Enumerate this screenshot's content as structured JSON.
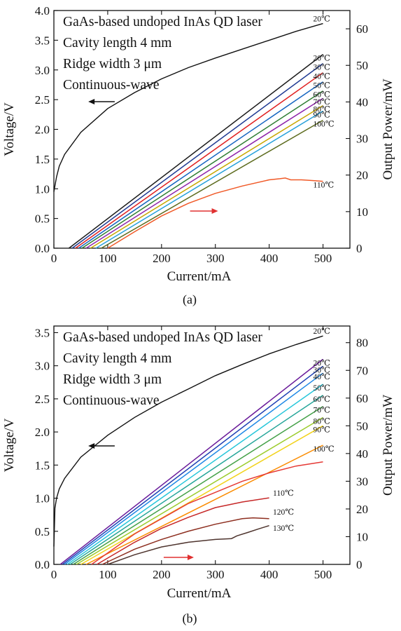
{
  "chart_data": [
    {
      "type": "line",
      "panel_label": "(a)",
      "xlabel": "Current/mA",
      "ylabel": "Voltage/V",
      "y2label": "Output Power/mW",
      "xlim": [
        0,
        550
      ],
      "ylim": [
        0,
        4.0
      ],
      "y2lim": [
        0,
        65
      ],
      "xticks": [
        0,
        100,
        200,
        300,
        400,
        500
      ],
      "yticks": [
        0,
        0.5,
        1.0,
        1.5,
        2.0,
        2.5,
        3.0,
        3.5,
        4.0
      ],
      "y2ticks": [
        0,
        10,
        20,
        30,
        40,
        50,
        60
      ],
      "annotations": [
        "GaAs-based undoped InAs QD laser",
        "Cavity length 4 mm",
        "Ridge width 3 μm",
        "Continuous-wave"
      ],
      "voltage": {
        "label": "20℃",
        "color": "#111111",
        "arrow": "left",
        "x": [
          0,
          2,
          5,
          10,
          20,
          50,
          100,
          150,
          200,
          250,
          300,
          350,
          400,
          450,
          500
        ],
        "y": [
          0.95,
          1.05,
          1.2,
          1.38,
          1.58,
          1.95,
          2.35,
          2.62,
          2.85,
          3.04,
          3.2,
          3.35,
          3.5,
          3.65,
          3.78
        ]
      },
      "power_arrow": "right",
      "power_series": [
        {
          "name": "20℃",
          "color": "#1a1a1a",
          "x": [
            28,
            500
          ],
          "y": [
            0,
            53
          ]
        },
        {
          "name": "30℃",
          "color": "#1f3a93",
          "x": [
            34,
            500
          ],
          "y": [
            0,
            50.5
          ]
        },
        {
          "name": "40℃",
          "color": "#e02020",
          "x": [
            40,
            500
          ],
          "y": [
            0,
            48
          ]
        },
        {
          "name": "50℃",
          "color": "#1565c0",
          "x": [
            46,
            500
          ],
          "y": [
            0,
            45.5
          ]
        },
        {
          "name": "60℃",
          "color": "#2e7d32",
          "x": [
            52,
            500
          ],
          "y": [
            0,
            43
          ]
        },
        {
          "name": "70℃",
          "color": "#8e24aa",
          "x": [
            60,
            500
          ],
          "y": [
            0,
            41
          ]
        },
        {
          "name": "80℃",
          "color": "#c6a700",
          "x": [
            68,
            500
          ],
          "y": [
            0,
            39
          ]
        },
        {
          "name": "90℃",
          "color": "#26a0da",
          "x": [
            78,
            500
          ],
          "y": [
            0,
            37.5
          ]
        },
        {
          "name": "100℃",
          "color": "#5d6b1e",
          "x": [
            88,
            500
          ],
          "y": [
            0,
            35
          ]
        },
        {
          "name": "110℃",
          "color": "#f05a28",
          "x": [
            100,
            150,
            200,
            250,
            300,
            350,
            400,
            420,
            430,
            440,
            460,
            480,
            500
          ],
          "y": [
            0,
            4.5,
            8.8,
            12.3,
            15.0,
            17.0,
            18.7,
            19.0,
            19.2,
            18.7,
            18.7,
            18.5,
            18.3
          ]
        }
      ]
    },
    {
      "type": "line",
      "panel_label": "(b)",
      "xlabel": "Current/mA",
      "ylabel": "Voltage/V",
      "y2label": "Output Power/mW",
      "xlim": [
        0,
        550
      ],
      "ylim": [
        0,
        3.6
      ],
      "y2lim": [
        0,
        86
      ],
      "xticks": [
        0,
        100,
        200,
        300,
        400,
        500
      ],
      "yticks": [
        0,
        0.5,
        1.0,
        1.5,
        2.0,
        2.5,
        3.0,
        3.5
      ],
      "y2ticks": [
        0,
        10,
        20,
        30,
        40,
        50,
        60,
        70,
        80
      ],
      "annotations": [
        "GaAs-based undoped InAs QD laser",
        "Cavity length 4 mm",
        "Ridge width 3 μm",
        "Continuous-wave"
      ],
      "voltage": {
        "label": "20℃",
        "color": "#111111",
        "arrow": "left",
        "x": [
          0,
          2,
          5,
          10,
          20,
          50,
          100,
          150,
          200,
          250,
          300,
          350,
          400,
          450,
          500
        ],
        "y": [
          0.27,
          0.85,
          1.0,
          1.14,
          1.3,
          1.62,
          1.95,
          2.22,
          2.45,
          2.65,
          2.85,
          3.02,
          3.18,
          3.32,
          3.45
        ]
      },
      "power_arrow": "right",
      "power_series": [
        {
          "name": "20℃",
          "color": "#6a1b9a",
          "x": [
            12,
            500
          ],
          "y": [
            0,
            74
          ]
        },
        {
          "name": "30℃",
          "color": "#1e3fb4",
          "x": [
            16,
            500
          ],
          "y": [
            0,
            71.5
          ]
        },
        {
          "name": "40℃",
          "color": "#1e88e5",
          "x": [
            20,
            500
          ],
          "y": [
            0,
            69
          ]
        },
        {
          "name": "50℃",
          "color": "#26c6da",
          "x": [
            25,
            500
          ],
          "y": [
            0,
            65
          ]
        },
        {
          "name": "60℃",
          "color": "#26a69a",
          "x": [
            30,
            500
          ],
          "y": [
            0,
            61
          ]
        },
        {
          "name": "70℃",
          "color": "#43a047",
          "x": [
            36,
            500
          ],
          "y": [
            0,
            57
          ]
        },
        {
          "name": "80℃",
          "color": "#9ccc2c",
          "x": [
            42,
            500
          ],
          "y": [
            0,
            53
          ]
        },
        {
          "name": "90℃",
          "color": "#f2d21a",
          "x": [
            50,
            500
          ],
          "y": [
            0,
            50
          ]
        },
        {
          "name": "100℃",
          "color": "#fb8c00",
          "x": [
            60,
            500
          ],
          "y": [
            0,
            43
          ]
        },
        {
          "name": "",
          "color": "#e53935",
          "x": [
            70,
            150,
            250,
            350,
            400,
            450,
            500
          ],
          "y": [
            0,
            11,
            22,
            30,
            33,
            35.5,
            37
          ]
        },
        {
          "name": "110℃",
          "color": "#c62828",
          "x": [
            80,
            150,
            200,
            250,
            300,
            350,
            400
          ],
          "y": [
            0,
            8,
            13,
            17,
            20.5,
            22.5,
            24
          ]
        },
        {
          "name": "120℃",
          "color": "#8d2e1f",
          "x": [
            90,
            150,
            200,
            250,
            300,
            350,
            370,
            400
          ],
          "y": [
            0,
            5.5,
            9,
            12,
            14.5,
            16.5,
            16.8,
            16.5
          ]
        },
        {
          "name": "130℃",
          "color": "#4e342e",
          "x": [
            100,
            150,
            200,
            250,
            300,
            330,
            340,
            360,
            380,
            400
          ],
          "y": [
            0,
            3.5,
            6.3,
            8.0,
            9.0,
            9.3,
            10.3,
            11.5,
            12.8,
            14.0
          ]
        }
      ]
    }
  ]
}
